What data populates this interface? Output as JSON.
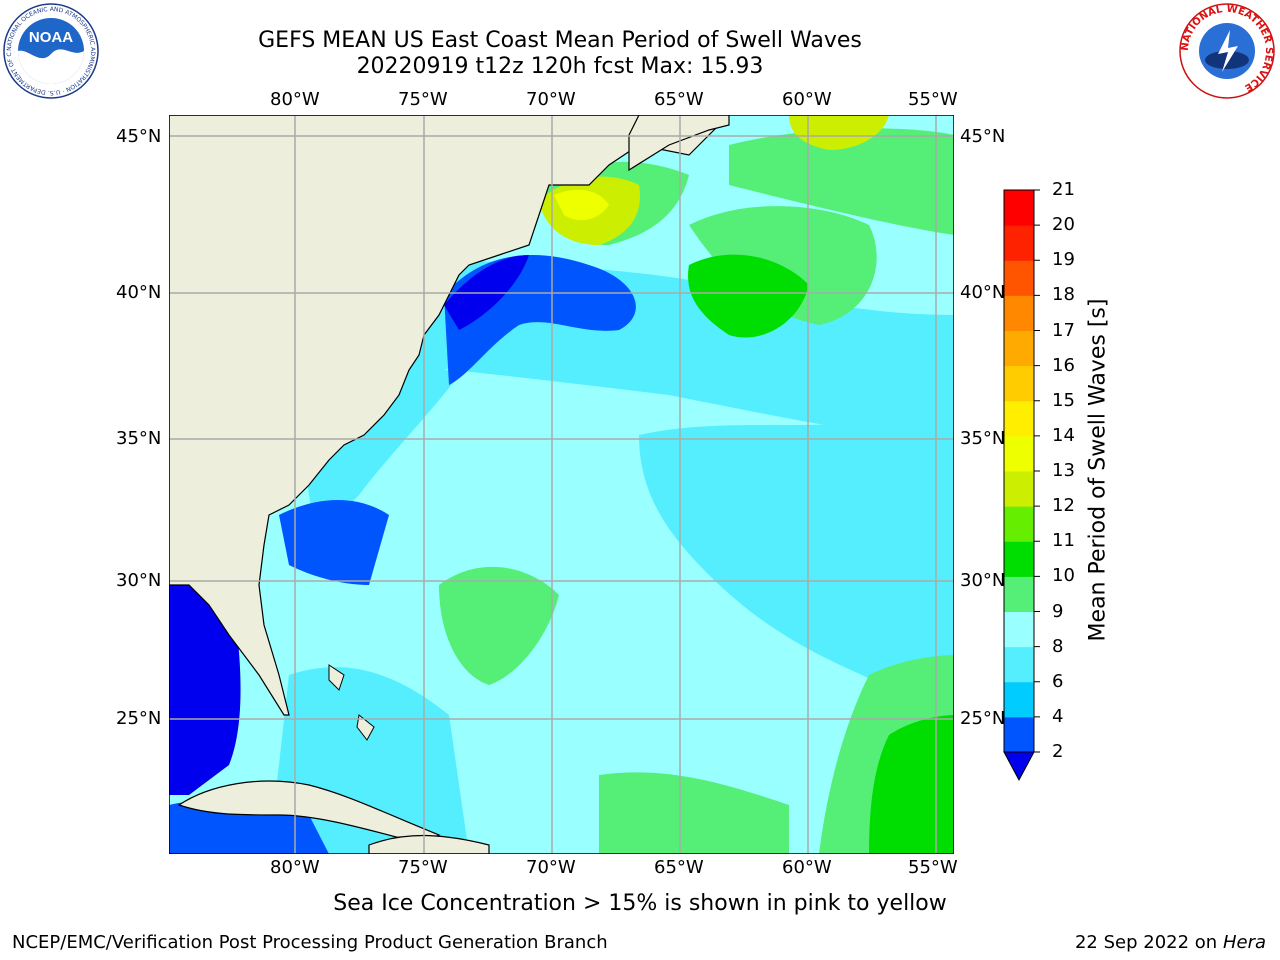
{
  "header": {
    "title_line1": "GEFS MEAN US East Coast Mean Period of Swell Waves",
    "title_line2": "20220919 t12z 120h fcst   Max: 15.93"
  },
  "logos": {
    "left": {
      "text": "NOAA",
      "ring_text": "NATIONAL OCEANIC AND ATMOSPHERIC ADMINISTRATION · U.S. DEPARTMENT OF COMMERCE"
    },
    "right": {
      "ring_text": "NATIONAL WEATHER SERVICE"
    }
  },
  "map": {
    "lon_labels": [
      "80°W",
      "75°W",
      "70°W",
      "65°W",
      "60°W",
      "55°W"
    ],
    "lat_labels": [
      "45°N",
      "40°N",
      "35°N",
      "30°N",
      "25°N"
    ],
    "land_color": "#eeeedd",
    "grid_color": "#aaaaaa"
  },
  "colorbar": {
    "title": "Mean Period of Swell Waves [s]",
    "ticks": [
      "21",
      "20",
      "19",
      "18",
      "17",
      "16",
      "15",
      "14",
      "13",
      "12",
      "11",
      "10",
      "9",
      "8",
      "6",
      "4",
      "2"
    ],
    "colors_bottom_to_top": [
      "#0055ff",
      "#00ccff",
      "#55eeff",
      "#99ffff",
      "#55ee77",
      "#00dd00",
      "#66ee00",
      "#ccee00",
      "#eeff00",
      "#ffee00",
      "#ffcc00",
      "#ffaa00",
      "#ff8800",
      "#ff5500",
      "#ff2200",
      "#ff0000"
    ],
    "extend_color": "#0000ee"
  },
  "caption": "Sea Ice Concentration > 15% is shown in pink to yellow",
  "footer": {
    "left": "NCEP/EMC/Verification Post Processing Product Generation Branch",
    "right_date": "22 Sep 2022 on",
    "right_host": "Hera"
  }
}
